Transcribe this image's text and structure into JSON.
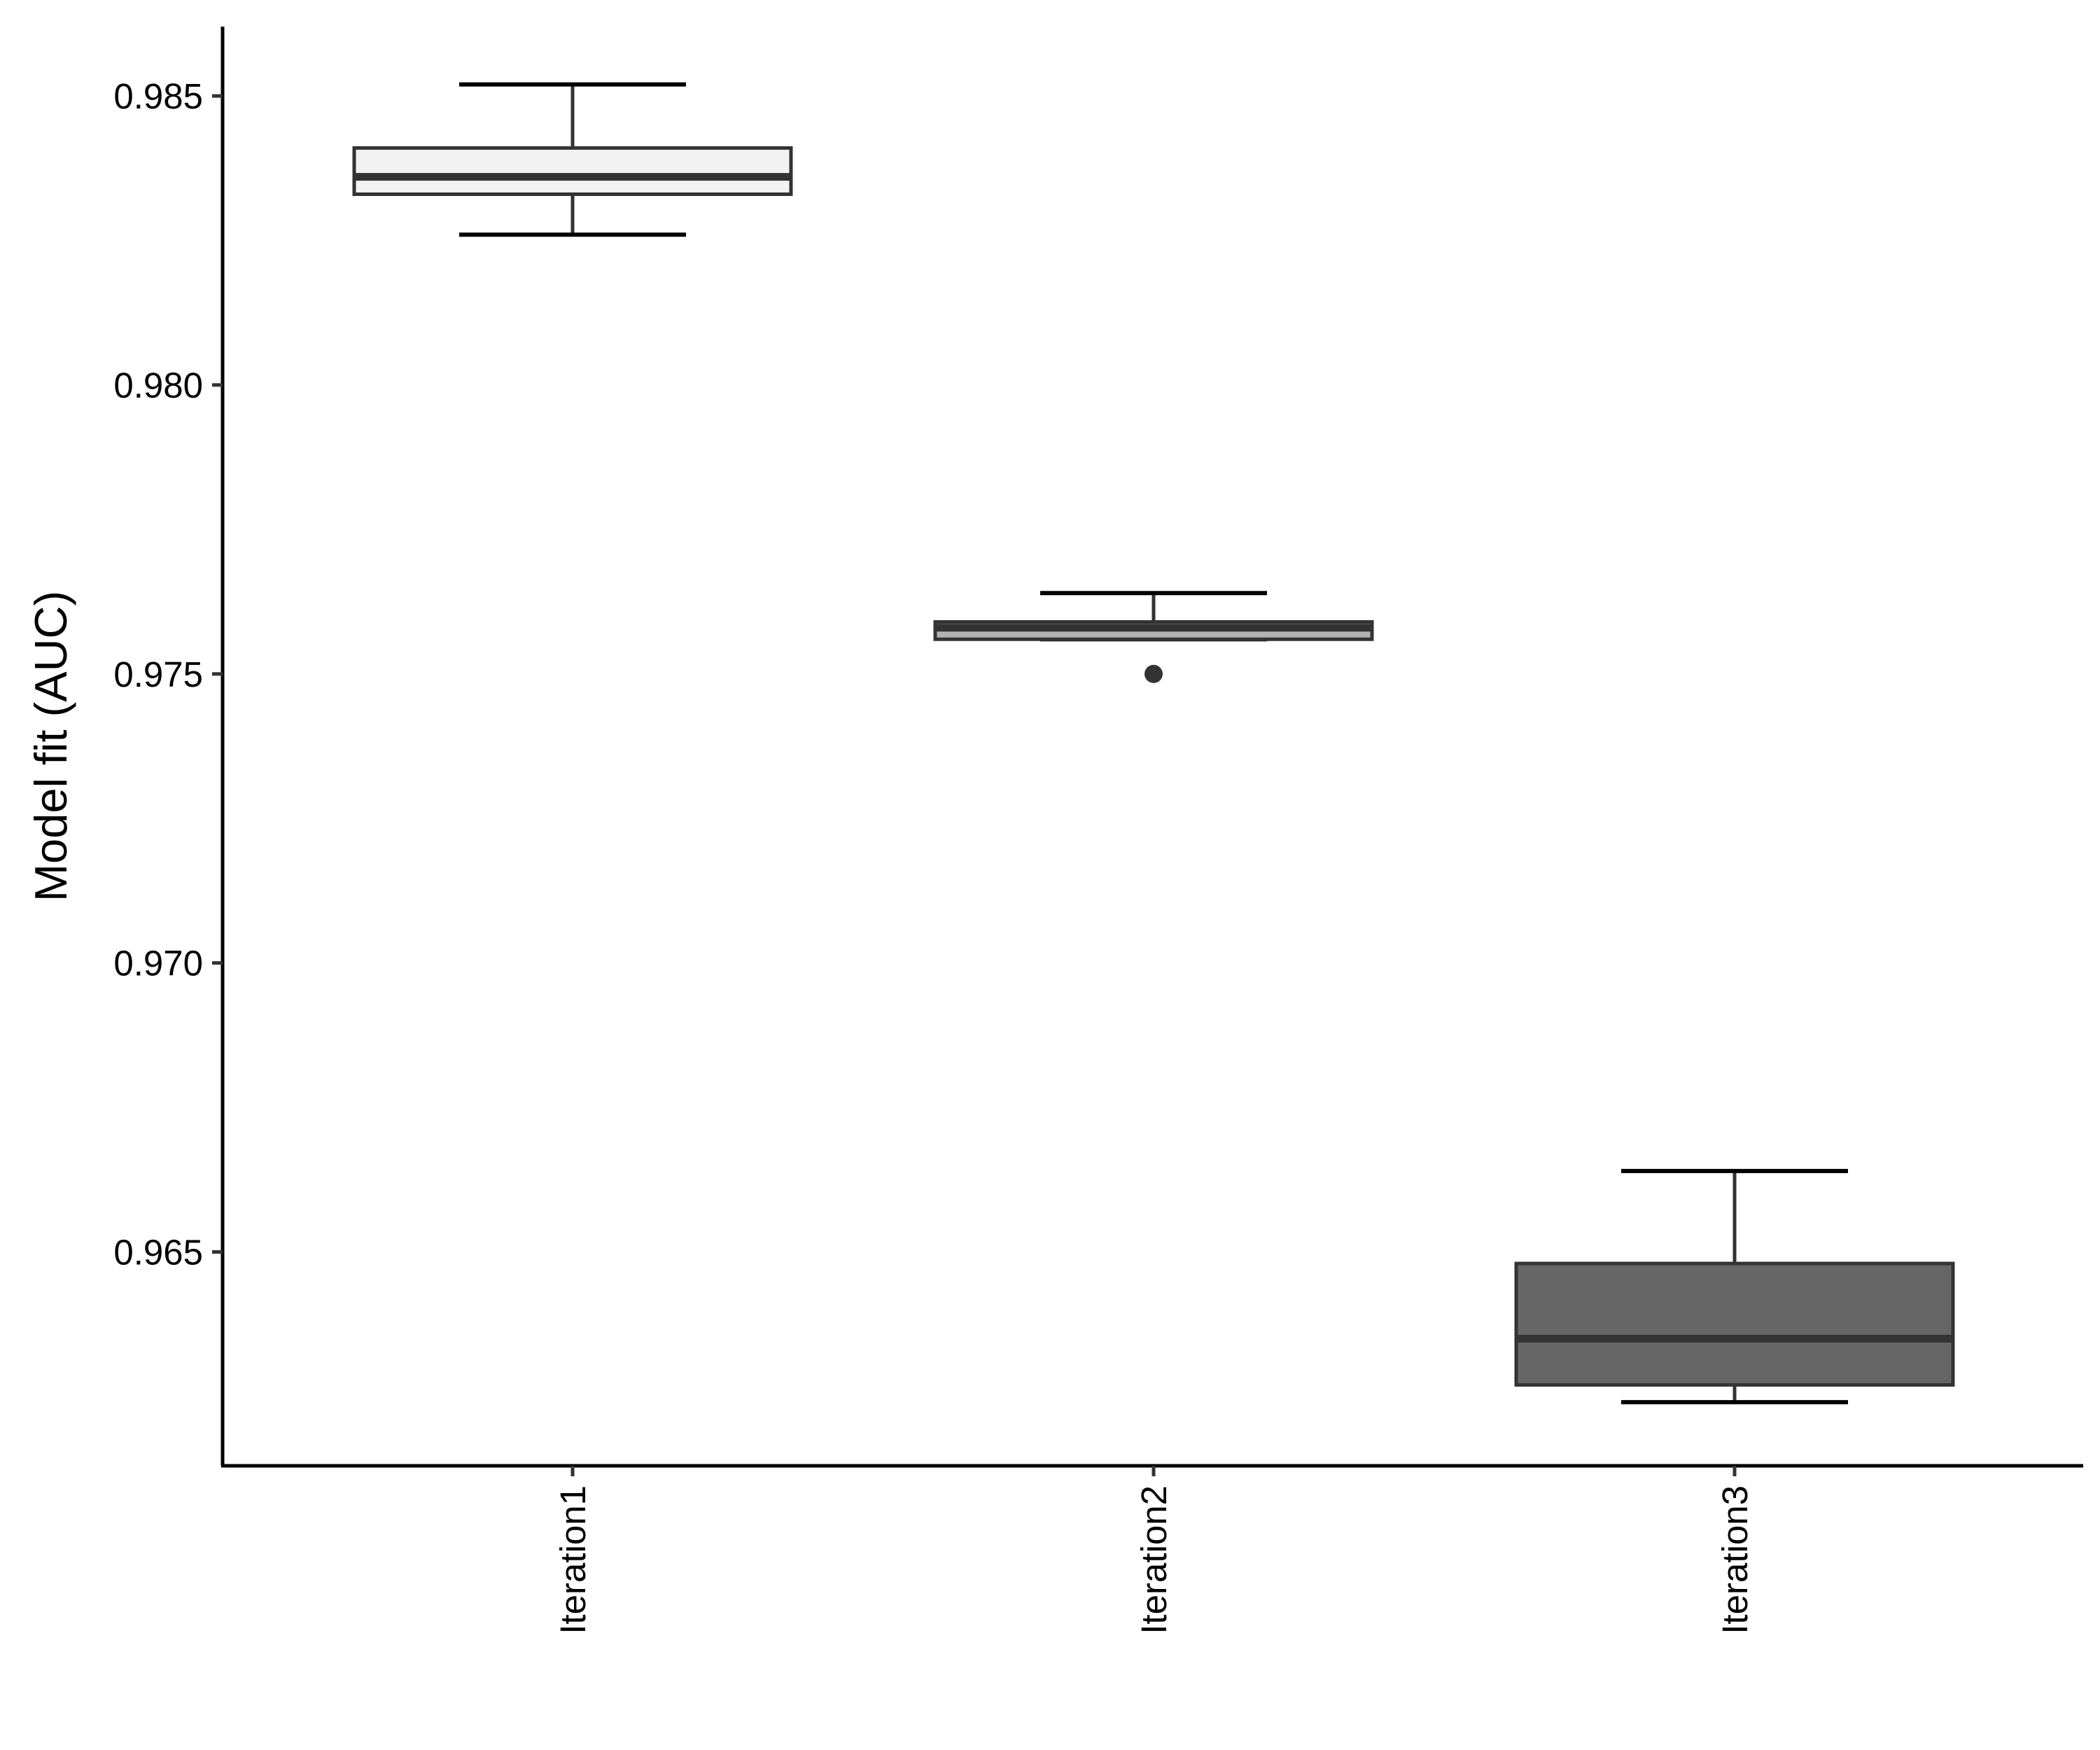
{
  "chart_data": {
    "type": "box",
    "title": "",
    "xlabel": "",
    "ylabel": "Model fit (AUC)",
    "ylim": [
      0.9613,
      0.9862
    ],
    "yticks": [
      0.965,
      0.97,
      0.975,
      0.98,
      0.985
    ],
    "ytick_labels": [
      "0.965",
      "0.970",
      "0.975",
      "0.980",
      "0.985"
    ],
    "categories": [
      "Iteration1",
      "Iteration2",
      "Iteration3"
    ],
    "grid": false,
    "legend": "none",
    "boxes": [
      {
        "category": "Iteration1",
        "fill": "#f2f2f2",
        "whisker_low": 0.9826,
        "q1": 0.9833,
        "median": 0.9836,
        "q3": 0.9841,
        "whisker_high": 0.9852,
        "outliers": []
      },
      {
        "category": "Iteration2",
        "fill": "#b3b3b3",
        "whisker_low": 0.9756,
        "q1": 0.9756,
        "median": 0.9758,
        "q3": 0.9759,
        "whisker_high": 0.9764,
        "outliers": [
          0.975
        ]
      },
      {
        "category": "Iteration3",
        "fill": "#666666",
        "whisker_low": 0.9624,
        "q1": 0.9627,
        "median": 0.9635,
        "q3": 0.9648,
        "whisker_high": 0.9664,
        "outliers": []
      }
    ]
  }
}
